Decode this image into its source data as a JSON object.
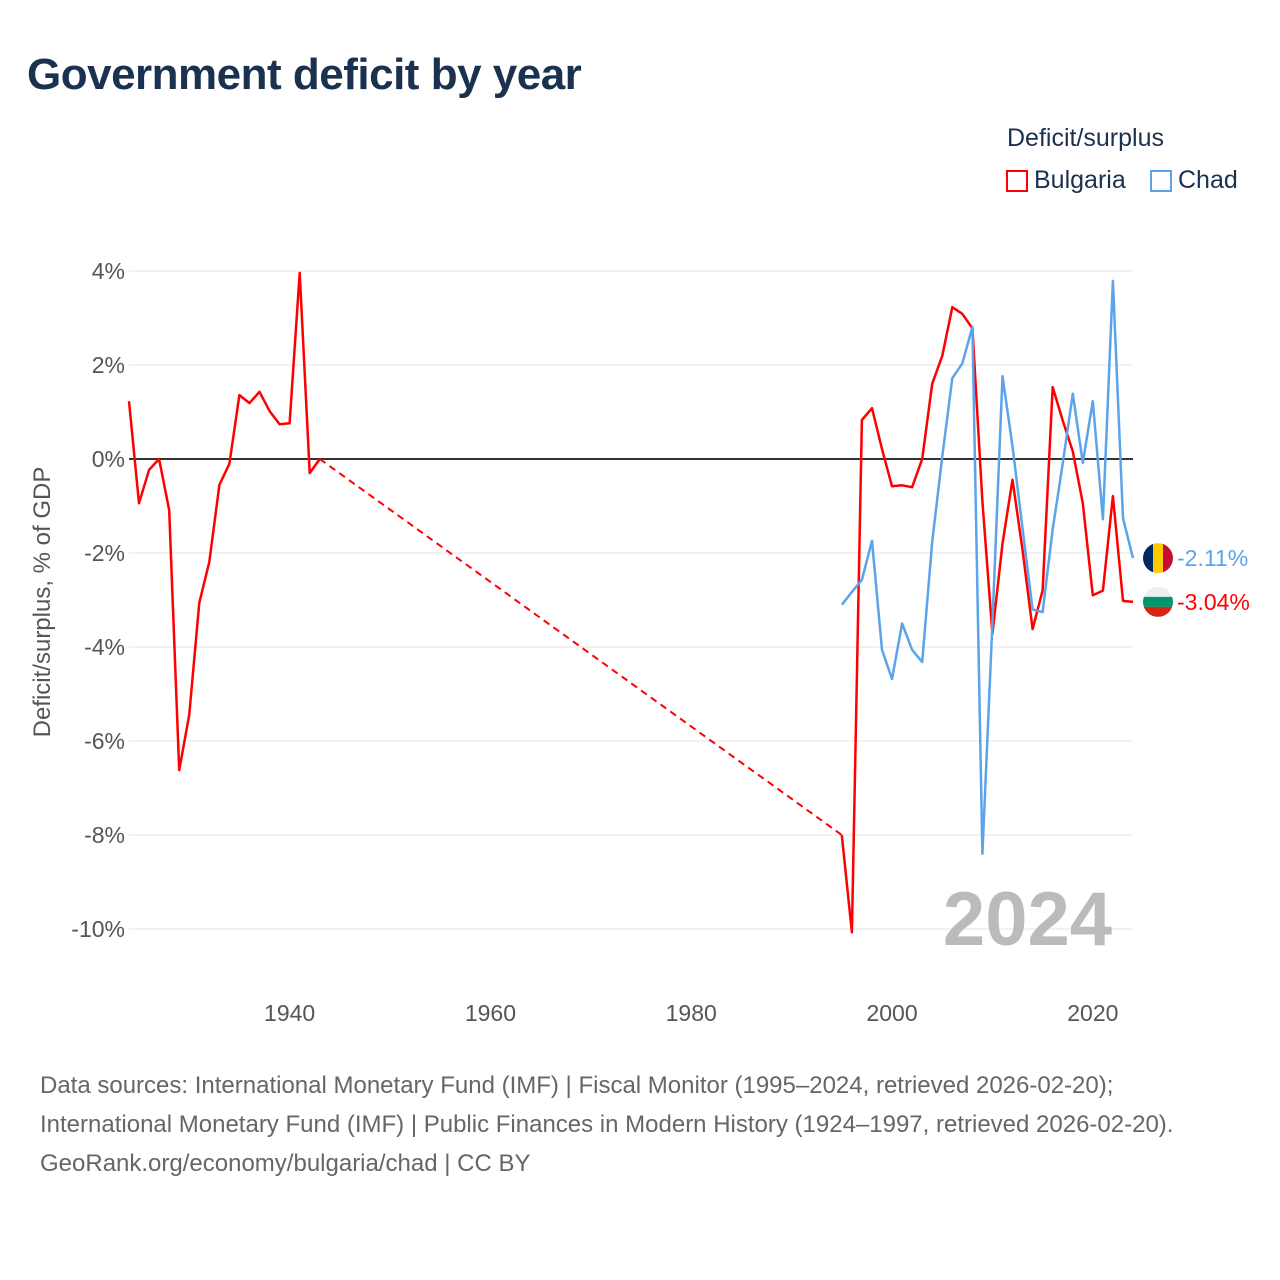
{
  "header": {
    "title": "Government deficit by year"
  },
  "legend": {
    "title": "Deficit/surplus",
    "items": [
      {
        "label": "Bulgaria",
        "color": "#ff0000"
      },
      {
        "label": "Chad",
        "color": "#5ca4ea"
      }
    ]
  },
  "watermark_year": "2024",
  "footer": {
    "sources": "Data sources: International Monetary Fund (IMF) | Fiscal Monitor (1995–2024, retrieved 2026-02-20); International Monetary Fund (IMF) | Public Finances in Modern History (1924–1997, retrieved 2026-02-20).",
    "credit": "GeoRank.org/economy/bulgaria/chad | CC BY"
  },
  "chart_data": {
    "type": "line",
    "title": "Government deficit by year",
    "xlabel": "",
    "ylabel": "Deficit/surplus, % of GDP",
    "xlim": [
      1924,
      2024
    ],
    "ylim": [
      -10,
      4
    ],
    "xticks": [
      1940,
      1960,
      1980,
      2000,
      2020
    ],
    "yticks": [
      4,
      2,
      0,
      -2,
      -4,
      -6,
      -8,
      -10
    ],
    "ytick_labels": [
      "4%",
      "2%",
      "0%",
      "-2%",
      "-4%",
      "-6%",
      "-8%",
      "-10%"
    ],
    "grid": true,
    "legend_position": "top-right",
    "series": [
      {
        "name": "Bulgaria",
        "color": "#ff0000",
        "end_label": "-3.04%",
        "flag": "bulgaria-flag",
        "segments": [
          {
            "x": [
              1924,
              1925,
              1926,
              1927,
              1928,
              1929,
              1930,
              1931,
              1932,
              1933,
              1934,
              1935,
              1936,
              1937,
              1938,
              1939,
              1940,
              1941,
              1942,
              1943
            ],
            "y": [
              1.23,
              -0.94,
              -0.23,
              0,
              -1.09,
              -6.62,
              -5.45,
              -3.06,
              -2.19,
              -0.55,
              -0.1,
              1.36,
              1.19,
              1.43,
              1.02,
              0.74,
              0.76,
              3.96,
              -0.3,
              0
            ]
          },
          {
            "x": [
              1995,
              1996,
              1997,
              1998,
              1999,
              2000,
              2001,
              2002,
              2003,
              2004,
              2005,
              2006,
              2007,
              2008,
              2009,
              2010,
              2011,
              2012,
              2013,
              2014,
              2015,
              2016,
              2017,
              2018,
              2019,
              2020,
              2021,
              2022,
              2023,
              2024
            ],
            "y": [
              -8.0,
              -10.07,
              0.83,
              1.08,
              0.21,
              -0.58,
              -0.56,
              -0.6,
              0,
              1.6,
              2.19,
              3.23,
              3.09,
              2.78,
              -0.9,
              -3.72,
              -1.8,
              -0.44,
              -1.95,
              -3.62,
              -2.8,
              1.53,
              0.82,
              0.16,
              -0.94,
              -2.9,
              -2.8,
              -0.79,
              -3.02,
              -3.04
            ]
          }
        ]
      },
      {
        "name": "Chad",
        "color": "#5ca4ea",
        "end_label": "-2.11%",
        "flag": "chad-flag",
        "segments": [
          {
            "x": [
              1995,
              1996,
              1997,
              1998,
              1999,
              2000,
              2001,
              2002,
              2003,
              2004,
              2005,
              2006,
              2007,
              2008,
              2009,
              2010,
              2011,
              2012,
              2013,
              2014,
              2015,
              2016,
              2017,
              2018,
              2019,
              2020,
              2021,
              2022,
              2023,
              2024
            ],
            "y": [
              -3.1,
              -2.83,
              -2.57,
              -1.74,
              -4.06,
              -4.68,
              -3.5,
              -4.06,
              -4.32,
              -1.76,
              0.04,
              1.72,
              2.03,
              2.81,
              -8.4,
              -3.5,
              1.76,
              0.27,
              -1.49,
              -3.2,
              -3.26,
              -1.49,
              -0.1,
              1.39,
              -0.08,
              1.23,
              -1.28,
              3.79,
              -1.26,
              -2.11
            ]
          }
        ]
      }
    ]
  }
}
